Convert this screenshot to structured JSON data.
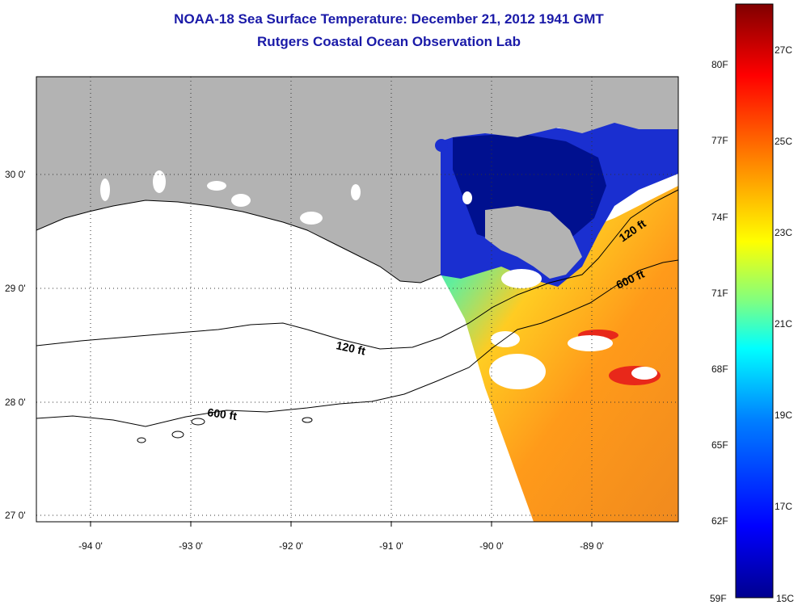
{
  "title": {
    "line1": "NOAA-18 Sea Surface Temperature:  December 21, 2012 1941 GMT",
    "line2": "Rutgers Coastal Ocean Observation Lab"
  },
  "map": {
    "lon_labels": [
      "-94 0'",
      "-93 0'",
      "-92 0'",
      "-91 0'",
      "-90 0'",
      "-89 0'"
    ],
    "lat_labels": [
      "30 0'",
      "29 0'",
      "28 0'",
      "27 0'"
    ],
    "contour_labels": [
      "120 ft",
      "600 ft",
      "120 ft",
      "600 ft"
    ],
    "colors": {
      "land": "#b3b3b3",
      "no_data": "#ffffff",
      "contour": "#000000"
    }
  },
  "colorbar": {
    "fahrenheit_labels": [
      "80F",
      "77F",
      "74F",
      "71F",
      "68F",
      "65F",
      "62F",
      "59F"
    ],
    "celsius_labels": [
      "27C",
      "25C",
      "23C",
      "21C",
      "19C",
      "17C",
      "15C"
    ],
    "colors": [
      "#00008f",
      "#0000ff",
      "#0080ff",
      "#00ffff",
      "#80ff80",
      "#ffff00",
      "#ff8000",
      "#ff0000",
      "#800000"
    ]
  }
}
